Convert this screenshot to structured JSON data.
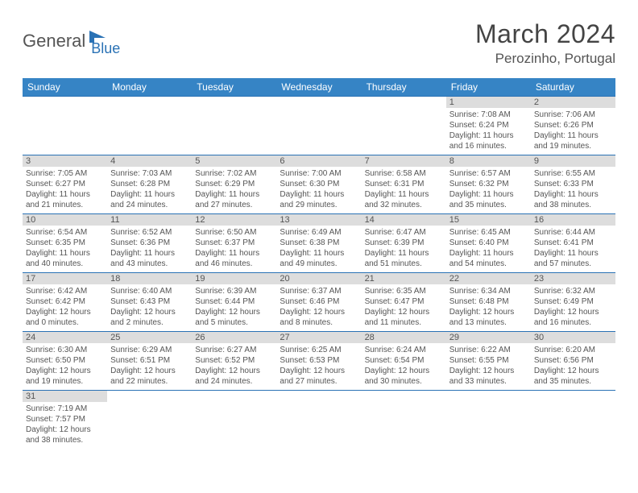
{
  "brand": {
    "part1": "General",
    "part2": "Blue"
  },
  "title": "March 2024",
  "location": "Perozinho, Portugal",
  "colors": {
    "header_bg": "#3684c5",
    "header_text": "#ffffff",
    "daynum_bg": "#dddddd",
    "row_border": "#2a72b5",
    "text": "#555555",
    "page_bg": "#ffffff"
  },
  "typography": {
    "title_fontsize": 32,
    "location_fontsize": 17,
    "dayheader_fontsize": 12,
    "daynum_fontsize": 11,
    "cell_fontsize": 10
  },
  "day_headers": [
    "Sunday",
    "Monday",
    "Tuesday",
    "Wednesday",
    "Thursday",
    "Friday",
    "Saturday"
  ],
  "weeks": [
    [
      null,
      null,
      null,
      null,
      null,
      {
        "n": "1",
        "sunrise": "Sunrise: 7:08 AM",
        "sunset": "Sunset: 6:24 PM",
        "daylight": "Daylight: 11 hours and 16 minutes."
      },
      {
        "n": "2",
        "sunrise": "Sunrise: 7:06 AM",
        "sunset": "Sunset: 6:26 PM",
        "daylight": "Daylight: 11 hours and 19 minutes."
      }
    ],
    [
      {
        "n": "3",
        "sunrise": "Sunrise: 7:05 AM",
        "sunset": "Sunset: 6:27 PM",
        "daylight": "Daylight: 11 hours and 21 minutes."
      },
      {
        "n": "4",
        "sunrise": "Sunrise: 7:03 AM",
        "sunset": "Sunset: 6:28 PM",
        "daylight": "Daylight: 11 hours and 24 minutes."
      },
      {
        "n": "5",
        "sunrise": "Sunrise: 7:02 AM",
        "sunset": "Sunset: 6:29 PM",
        "daylight": "Daylight: 11 hours and 27 minutes."
      },
      {
        "n": "6",
        "sunrise": "Sunrise: 7:00 AM",
        "sunset": "Sunset: 6:30 PM",
        "daylight": "Daylight: 11 hours and 29 minutes."
      },
      {
        "n": "7",
        "sunrise": "Sunrise: 6:58 AM",
        "sunset": "Sunset: 6:31 PM",
        "daylight": "Daylight: 11 hours and 32 minutes."
      },
      {
        "n": "8",
        "sunrise": "Sunrise: 6:57 AM",
        "sunset": "Sunset: 6:32 PM",
        "daylight": "Daylight: 11 hours and 35 minutes."
      },
      {
        "n": "9",
        "sunrise": "Sunrise: 6:55 AM",
        "sunset": "Sunset: 6:33 PM",
        "daylight": "Daylight: 11 hours and 38 minutes."
      }
    ],
    [
      {
        "n": "10",
        "sunrise": "Sunrise: 6:54 AM",
        "sunset": "Sunset: 6:35 PM",
        "daylight": "Daylight: 11 hours and 40 minutes."
      },
      {
        "n": "11",
        "sunrise": "Sunrise: 6:52 AM",
        "sunset": "Sunset: 6:36 PM",
        "daylight": "Daylight: 11 hours and 43 minutes."
      },
      {
        "n": "12",
        "sunrise": "Sunrise: 6:50 AM",
        "sunset": "Sunset: 6:37 PM",
        "daylight": "Daylight: 11 hours and 46 minutes."
      },
      {
        "n": "13",
        "sunrise": "Sunrise: 6:49 AM",
        "sunset": "Sunset: 6:38 PM",
        "daylight": "Daylight: 11 hours and 49 minutes."
      },
      {
        "n": "14",
        "sunrise": "Sunrise: 6:47 AM",
        "sunset": "Sunset: 6:39 PM",
        "daylight": "Daylight: 11 hours and 51 minutes."
      },
      {
        "n": "15",
        "sunrise": "Sunrise: 6:45 AM",
        "sunset": "Sunset: 6:40 PM",
        "daylight": "Daylight: 11 hours and 54 minutes."
      },
      {
        "n": "16",
        "sunrise": "Sunrise: 6:44 AM",
        "sunset": "Sunset: 6:41 PM",
        "daylight": "Daylight: 11 hours and 57 minutes."
      }
    ],
    [
      {
        "n": "17",
        "sunrise": "Sunrise: 6:42 AM",
        "sunset": "Sunset: 6:42 PM",
        "daylight": "Daylight: 12 hours and 0 minutes."
      },
      {
        "n": "18",
        "sunrise": "Sunrise: 6:40 AM",
        "sunset": "Sunset: 6:43 PM",
        "daylight": "Daylight: 12 hours and 2 minutes."
      },
      {
        "n": "19",
        "sunrise": "Sunrise: 6:39 AM",
        "sunset": "Sunset: 6:44 PM",
        "daylight": "Daylight: 12 hours and 5 minutes."
      },
      {
        "n": "20",
        "sunrise": "Sunrise: 6:37 AM",
        "sunset": "Sunset: 6:46 PM",
        "daylight": "Daylight: 12 hours and 8 minutes."
      },
      {
        "n": "21",
        "sunrise": "Sunrise: 6:35 AM",
        "sunset": "Sunset: 6:47 PM",
        "daylight": "Daylight: 12 hours and 11 minutes."
      },
      {
        "n": "22",
        "sunrise": "Sunrise: 6:34 AM",
        "sunset": "Sunset: 6:48 PM",
        "daylight": "Daylight: 12 hours and 13 minutes."
      },
      {
        "n": "23",
        "sunrise": "Sunrise: 6:32 AM",
        "sunset": "Sunset: 6:49 PM",
        "daylight": "Daylight: 12 hours and 16 minutes."
      }
    ],
    [
      {
        "n": "24",
        "sunrise": "Sunrise: 6:30 AM",
        "sunset": "Sunset: 6:50 PM",
        "daylight": "Daylight: 12 hours and 19 minutes."
      },
      {
        "n": "25",
        "sunrise": "Sunrise: 6:29 AM",
        "sunset": "Sunset: 6:51 PM",
        "daylight": "Daylight: 12 hours and 22 minutes."
      },
      {
        "n": "26",
        "sunrise": "Sunrise: 6:27 AM",
        "sunset": "Sunset: 6:52 PM",
        "daylight": "Daylight: 12 hours and 24 minutes."
      },
      {
        "n": "27",
        "sunrise": "Sunrise: 6:25 AM",
        "sunset": "Sunset: 6:53 PM",
        "daylight": "Daylight: 12 hours and 27 minutes."
      },
      {
        "n": "28",
        "sunrise": "Sunrise: 6:24 AM",
        "sunset": "Sunset: 6:54 PM",
        "daylight": "Daylight: 12 hours and 30 minutes."
      },
      {
        "n": "29",
        "sunrise": "Sunrise: 6:22 AM",
        "sunset": "Sunset: 6:55 PM",
        "daylight": "Daylight: 12 hours and 33 minutes."
      },
      {
        "n": "30",
        "sunrise": "Sunrise: 6:20 AM",
        "sunset": "Sunset: 6:56 PM",
        "daylight": "Daylight: 12 hours and 35 minutes."
      }
    ],
    [
      {
        "n": "31",
        "sunrise": "Sunrise: 7:19 AM",
        "sunset": "Sunset: 7:57 PM",
        "daylight": "Daylight: 12 hours and 38 minutes."
      },
      null,
      null,
      null,
      null,
      null,
      null
    ]
  ]
}
